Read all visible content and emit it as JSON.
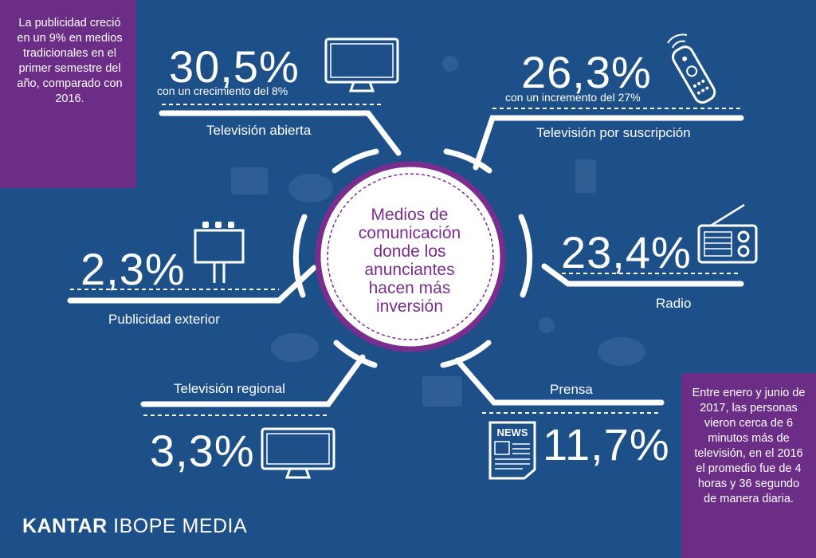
{
  "chart_data": {
    "type": "table",
    "center_title": [
      "Medios de",
      "comunicación",
      "donde los",
      "anunciantes",
      "hacen más",
      "inversión"
    ],
    "items": [
      {
        "value": "30,5%",
        "label": "Televisión abierta",
        "note": "con un crecimiento del 8%",
        "icon": "tv-icon"
      },
      {
        "value": "26,3%",
        "label": "Televisión por suscripción",
        "note": "con un incremento del 27%",
        "icon": "remote-control-icon"
      },
      {
        "value": "23,4%",
        "label": "Radio",
        "note": "",
        "icon": "radio-icon"
      },
      {
        "value": "11,7%",
        "label": "Prensa",
        "note": "",
        "icon": "newspaper-icon"
      },
      {
        "value": "3,3%",
        "label": "Televisión regional",
        "note": "",
        "icon": "tv-icon"
      },
      {
        "value": "2,3%",
        "label": "Publicidad exterior",
        "note": "",
        "icon": "billboard-icon"
      }
    ]
  },
  "notes": {
    "top_left": "La publicidad creció en un 9% en medios tradicionales en el primer semestre del año, comparado con 2016.",
    "bottom_right": "Entre enero y junio de 2017, las personas vieron cerca de 6 minutos más de televisión, en el 2016 el promedio fue de 4 horas y 36 segundo de manera diaria."
  },
  "newspaper_masthead": "NEWS",
  "brand": {
    "name_bold": "KANTAR",
    "name_rest": "IBOPE MEDIA"
  },
  "colors": {
    "background": "#1d4f88",
    "accent_purple": "#7b2d8e",
    "note_purple": "#6b2d86",
    "line": "#ffffff"
  }
}
